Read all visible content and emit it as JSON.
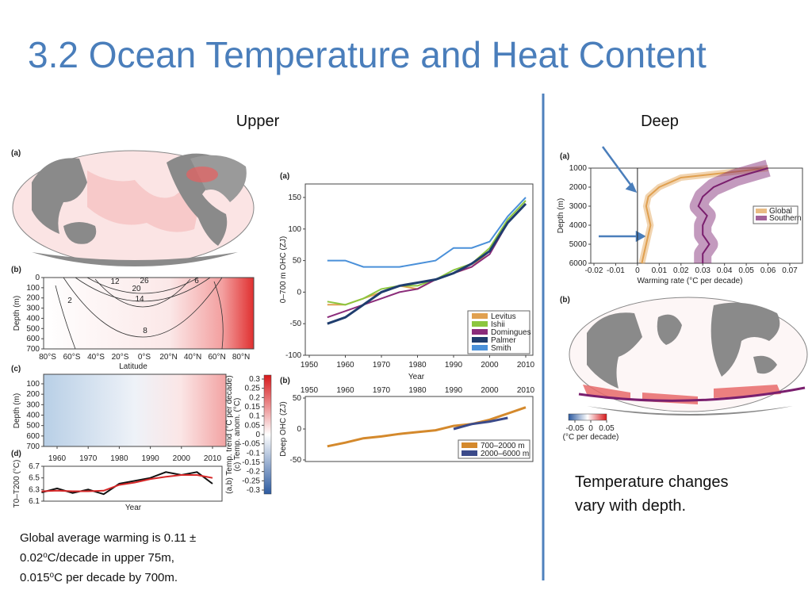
{
  "title": "3.2 Ocean Temperature and Heat Content",
  "headings": [
    "Upper",
    "Deep"
  ],
  "upper_figure": {
    "a": {
      "label": "(a)"
    },
    "b": {
      "label": "(b)",
      "ylabel": "Depth (m)",
      "yticks": [
        0,
        100,
        200,
        300,
        400,
        500,
        600,
        700
      ],
      "xticks": [
        "80°S",
        "60°S",
        "40°S",
        "20°S",
        "0°S",
        "20°N",
        "40°N",
        "60°N",
        "80°N"
      ],
      "xlabel": "Latitude",
      "contours": [
        "26",
        "20",
        "14",
        "8",
        "2",
        "12",
        "6"
      ]
    },
    "c": {
      "label": "(c)",
      "ylabel": "Depth (m)",
      "yticks": [
        100,
        200,
        300,
        400,
        500,
        600,
        700
      ],
      "xticks": [
        1960,
        1970,
        1980,
        1990,
        2000,
        2010
      ]
    },
    "colorbar": {
      "ticks": [
        0.3,
        0.25,
        0.2,
        0.15,
        0.1,
        0.05,
        0,
        -0.05,
        -0.1,
        -0.15,
        -0.2,
        -0.25,
        -0.3
      ],
      "labels": [
        "(a,b) Temp. trend (°C per decade)",
        "(c) Temp. anom. (°C)"
      ]
    },
    "d": {
      "label": "(d)",
      "ylabel": "T0–T200 (°C)",
      "yticks": [
        6.1,
        6.3,
        6.5,
        6.7
      ],
      "xlabel": "Year",
      "x": [
        1955,
        1960,
        1965,
        1970,
        1975,
        1980,
        1985,
        1990,
        1995,
        2000,
        2005,
        2010
      ],
      "series": [
        {
          "color": "#111111",
          "values": [
            6.25,
            6.32,
            6.24,
            6.3,
            6.22,
            6.4,
            6.45,
            6.5,
            6.6,
            6.55,
            6.6,
            6.4
          ]
        },
        {
          "color": "#d62728",
          "values": [
            6.27,
            6.28,
            6.27,
            6.27,
            6.28,
            6.38,
            6.42,
            6.48,
            6.52,
            6.55,
            6.55,
            6.5
          ]
        }
      ]
    }
  },
  "ohc_figure": {
    "a": {
      "label": "(a)",
      "ylabel": "0–700 m OHC (ZJ)",
      "xlabel": "Year",
      "yticks": [
        -100,
        -50,
        0,
        50,
        100,
        150
      ],
      "xticks": [
        1950,
        1960,
        1970,
        1980,
        1990,
        2000,
        2010
      ],
      "x": [
        1955,
        1960,
        1965,
        1970,
        1975,
        1980,
        1985,
        1990,
        1995,
        2000,
        2005,
        2010
      ],
      "series": [
        {
          "name": "Levitus",
          "color": "#e0a050",
          "values": [
            -20,
            -20,
            -10,
            0,
            10,
            5,
            20,
            30,
            40,
            65,
            110,
            140
          ]
        },
        {
          "name": "Ishii",
          "color": "#8cc63f",
          "values": [
            -15,
            -20,
            -10,
            5,
            10,
            10,
            20,
            35,
            45,
            70,
            115,
            145
          ]
        },
        {
          "name": "Domingues",
          "color": "#8b2c7a",
          "values": [
            -40,
            -30,
            -20,
            -10,
            0,
            5,
            20,
            30,
            40,
            60,
            110,
            140
          ]
        },
        {
          "name": "Palmer",
          "color": "#1f3d6e",
          "values": [
            -50,
            -40,
            -20,
            0,
            10,
            15,
            20,
            30,
            45,
            65,
            110,
            140
          ]
        },
        {
          "name": "Smith",
          "color": "#4a90d9",
          "values": [
            50,
            50,
            40,
            40,
            40,
            45,
            50,
            70,
            70,
            80,
            120,
            150
          ]
        }
      ]
    },
    "b": {
      "label": "(b)",
      "ylabel": "Deep OHC (ZJ)",
      "yticks": [
        -50,
        0,
        50
      ],
      "xticks": [
        1950,
        1960,
        1970,
        1980,
        1990,
        2000,
        2010
      ],
      "x": [
        1955,
        1960,
        1965,
        1970,
        1975,
        1980,
        1985,
        1990,
        1995,
        2000,
        2005,
        2010
      ],
      "series": [
        {
          "name": "700–2000 m",
          "color": "#d4892c",
          "values": [
            -28,
            -22,
            -15,
            -12,
            -8,
            -5,
            -2,
            5,
            8,
            15,
            25,
            35
          ]
        },
        {
          "name": "2000–6000 m",
          "color": "#3b4a8a",
          "values": [
            null,
            null,
            null,
            null,
            null,
            null,
            null,
            0,
            8,
            12,
            18,
            null
          ]
        }
      ]
    }
  },
  "deep_figure": {
    "a": {
      "label": "(a)",
      "ylabel": "Depth (m)",
      "xlabel": "Warming rate (°C per decade)",
      "yticks": [
        1000,
        2000,
        3000,
        4000,
        5000,
        6000
      ],
      "xticks": [
        -0.02,
        -0.01,
        0,
        0.01,
        0.02,
        0.03,
        0.04,
        0.05,
        0.06,
        0.07
      ],
      "depth": [
        1000,
        1500,
        2000,
        2500,
        3000,
        3500,
        4000,
        4500,
        5000,
        5500,
        6000
      ],
      "series": [
        {
          "name": "Global",
          "color": "#e0a050",
          "values": [
            0.06,
            0.02,
            0.01,
            0.005,
            0.004,
            0.005,
            0.006,
            0.005,
            0.004,
            0.003,
            0.002
          ]
        },
        {
          "name": "Southern",
          "color": "#7a1f6e",
          "values": [
            0.06,
            0.045,
            0.035,
            0.03,
            0.028,
            0.032,
            0.03,
            0.03,
            0.033,
            0.03,
            0.03
          ]
        }
      ]
    },
    "b": {
      "label": "(b)",
      "colorbar_ticks": [
        -0.05,
        0,
        0.05
      ],
      "colorbar_label": "(°C per decade)"
    }
  },
  "notes": {
    "upper": [
      "Global average warming is 0.11 ±",
      "0.02",
      "o",
      "C/decade in upper 75m,",
      "0.015",
      "o",
      "C per decade by 700m."
    ],
    "deep": [
      "Temperature changes",
      "vary with depth."
    ]
  }
}
